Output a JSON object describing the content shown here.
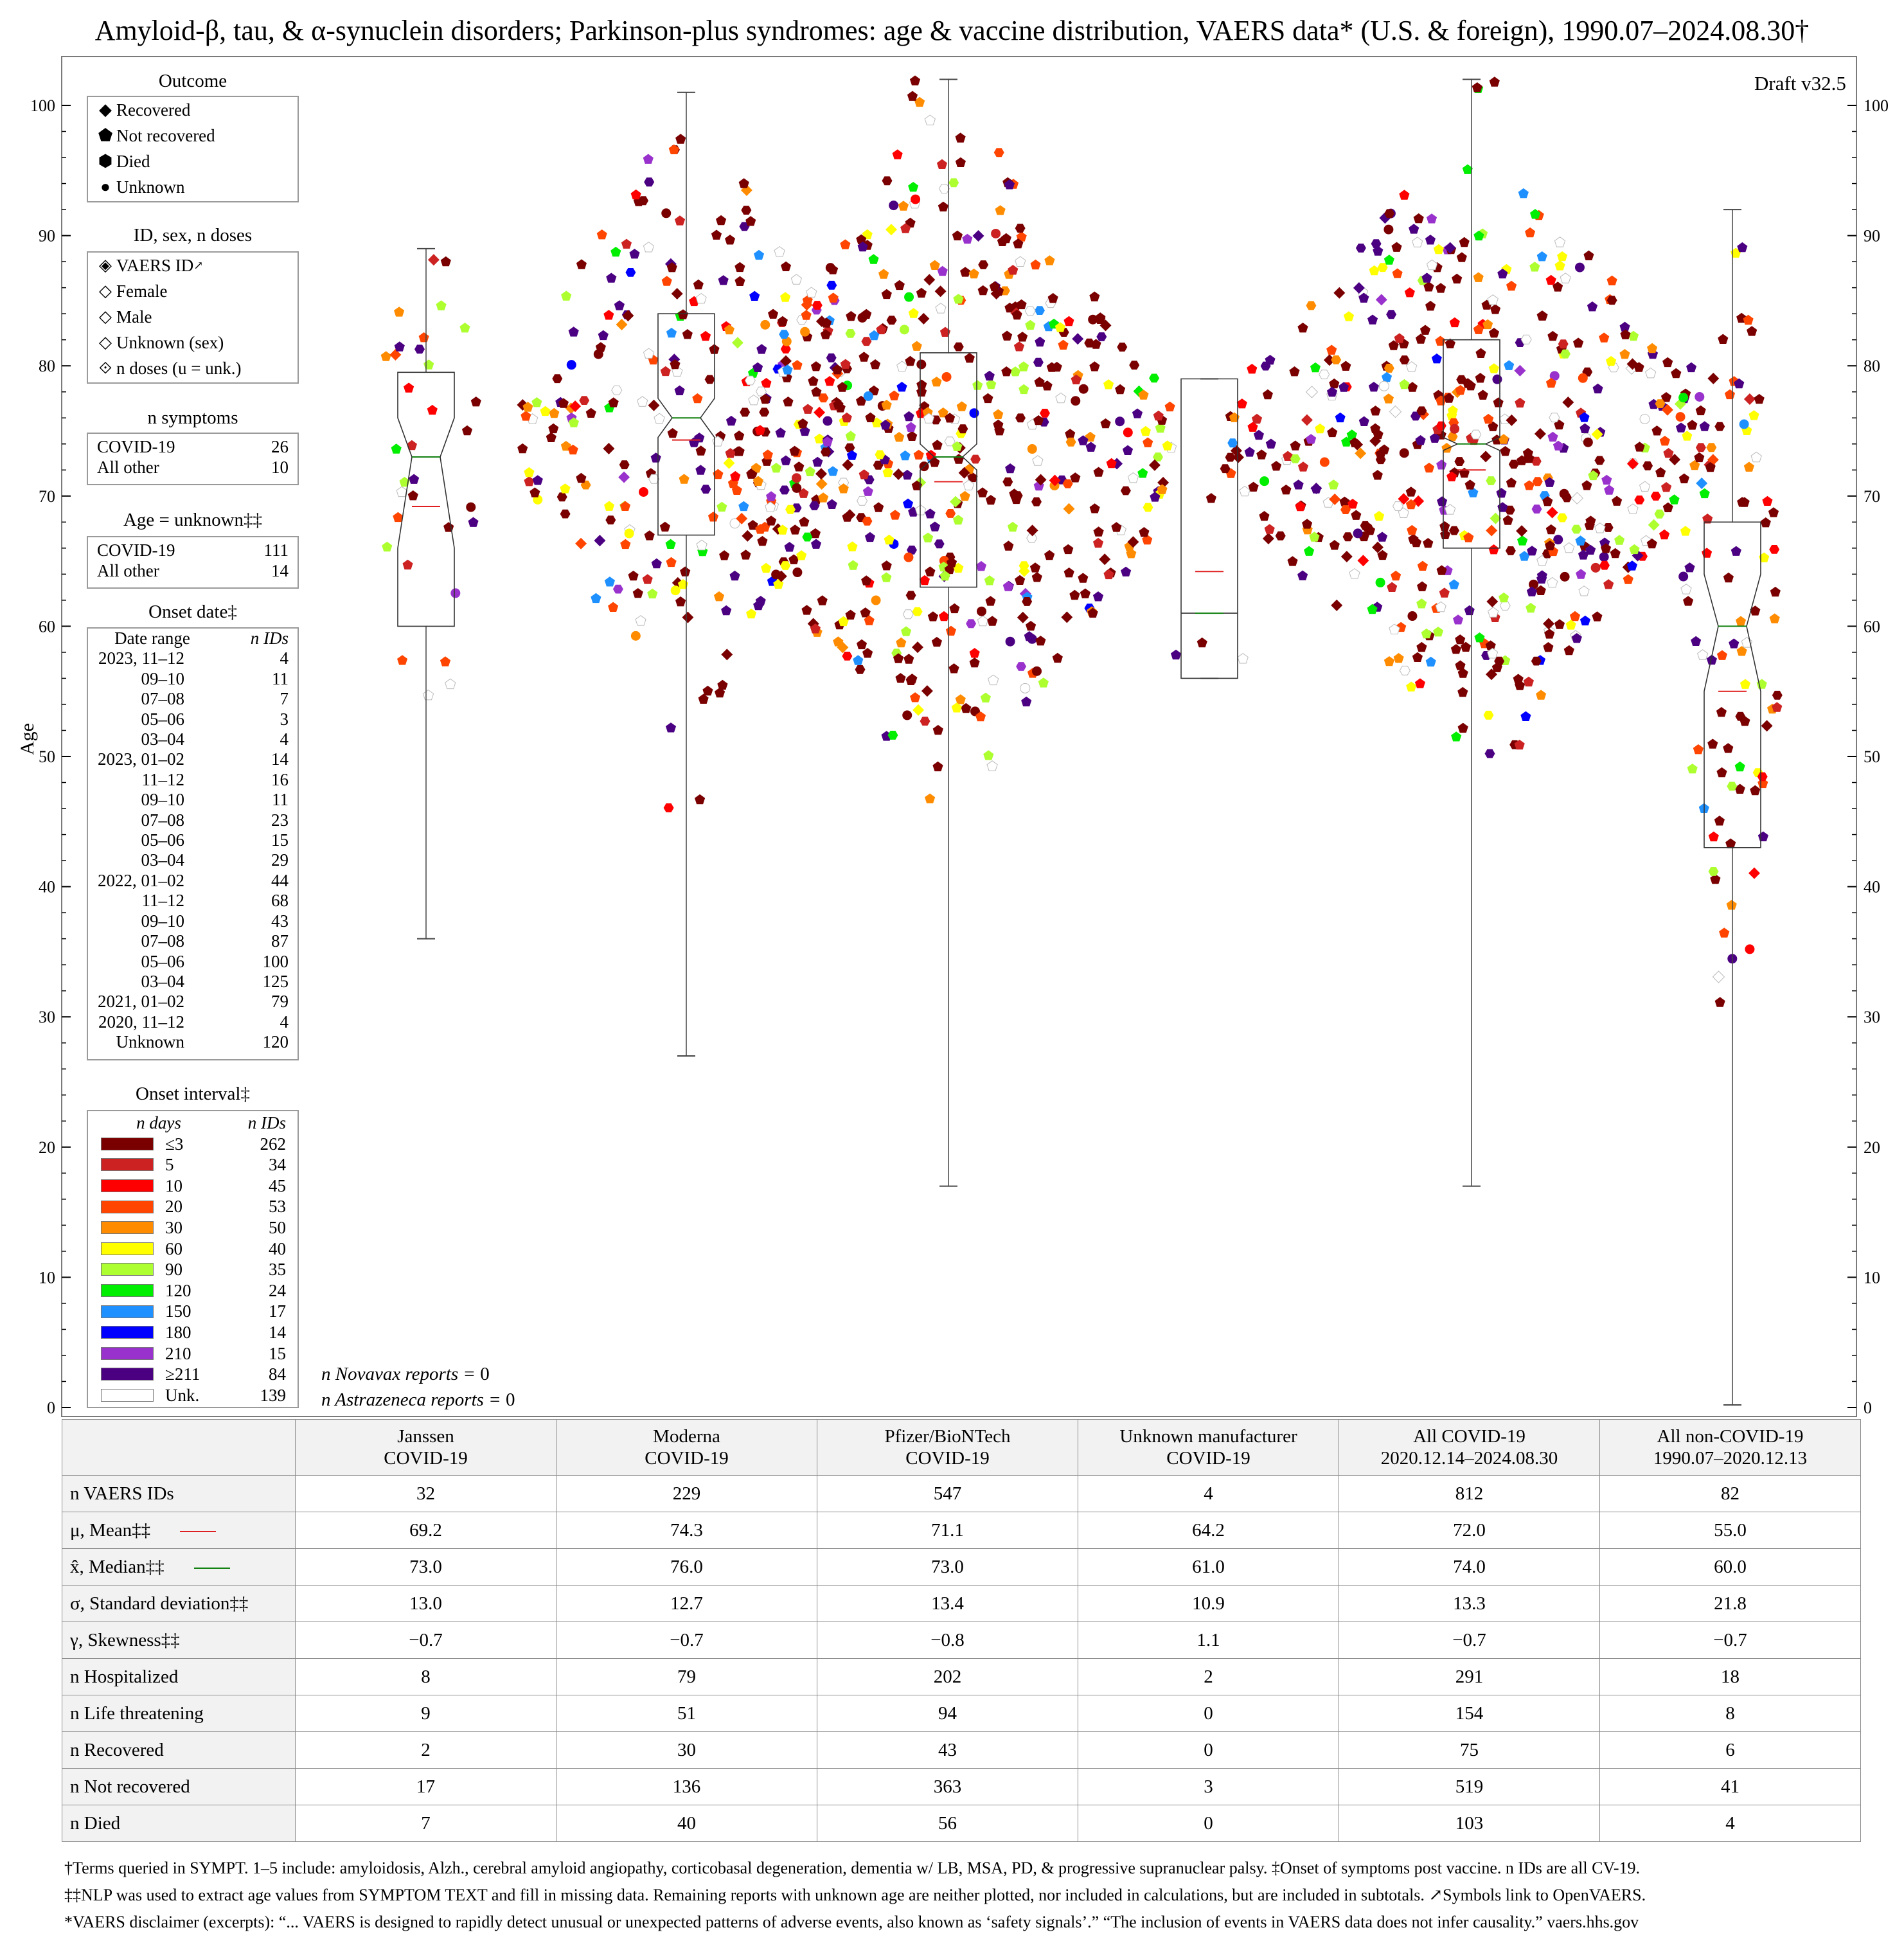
{
  "title": "Amyloid-β, tau, & α-synuclein disorders; Parkinson-plus syndromes: age & vaccine distribution, VAERS data* (U.S. & foreign), 1990.07–2024.08.30†",
  "draft": "Draft v32.5",
  "chart_data": {
    "type": "scatter",
    "subtype": "box plot with beeswarm points",
    "ylabel": "Age",
    "ylim": [
      0,
      103
    ],
    "yticks": [
      0,
      10,
      20,
      30,
      40,
      50,
      60,
      70,
      80,
      90,
      100
    ],
    "categories": [
      "Janssen COVID-19",
      "Moderna COVID-19",
      "Pfizer/BioNTech COVID-19",
      "Unknown manufacturer COVID-19",
      "All COVID-19",
      "All non-COVID-19"
    ],
    "boxes": [
      {
        "name": "Janssen",
        "min": 36,
        "q1": 60,
        "median": 73,
        "q3": 79.5,
        "max": 89,
        "mean": 69.2,
        "notch_low": 66,
        "notch_high": 76
      },
      {
        "name": "Moderna",
        "min": 27,
        "q1": 67,
        "median": 76,
        "q3": 84,
        "max": 101,
        "mean": 74.3,
        "notch_low": 74.5,
        "notch_high": 77.5
      },
      {
        "name": "Pfizer/BioNTech",
        "min": 17,
        "q1": 63,
        "median": 73,
        "q3": 81,
        "max": 102,
        "mean": 71.1,
        "notch_low": 72,
        "notch_high": 74
      },
      {
        "name": "Unknown manufacturer",
        "min": 56,
        "q1": 56,
        "median": 61,
        "q3": 79,
        "max": 79,
        "mean": 64.2,
        "notch_low": 61,
        "notch_high": 61
      },
      {
        "name": "All COVID-19",
        "min": 17,
        "q1": 66,
        "median": 74,
        "q3": 82,
        "max": 102,
        "mean": 72.0,
        "notch_low": 73.5,
        "notch_high": 74.5
      },
      {
        "name": "All non-COVID-19",
        "min": 0.2,
        "q1": 43,
        "median": 60,
        "q3": 68,
        "max": 92,
        "mean": 55.0,
        "notch_low": 55,
        "notch_high": 64
      }
    ],
    "legend_placement": "left"
  },
  "legends": {
    "outcome": {
      "title": "Outcome",
      "items": [
        {
          "label": "Recovered",
          "icon": "diamond"
        },
        {
          "label": "Not recovered",
          "icon": "pentagon"
        },
        {
          "label": "Died",
          "icon": "hexagon"
        },
        {
          "label": "Unknown",
          "icon": "circle"
        }
      ]
    },
    "id_sex": {
      "title": "ID, sex, n doses",
      "items": [
        {
          "label": "VAERS ID",
          "icon": "diamond-crossed"
        },
        {
          "label": "Female",
          "icon": "diamond-female"
        },
        {
          "label": "Male",
          "icon": "diamond-male"
        },
        {
          "label": "Unknown (sex)",
          "icon": "diamond-unknown"
        },
        {
          "label": "n doses (u = unk.)",
          "icon": "diamond-dot"
        }
      ]
    },
    "symptoms": {
      "title": "n symptoms",
      "rows": [
        {
          "label": "COVID-19",
          "n": "26"
        },
        {
          "label": "All other",
          "n": "10"
        }
      ]
    },
    "age_unknown": {
      "title": "Age = unknown‡‡",
      "rows": [
        {
          "label": "COVID-19",
          "n": "111"
        },
        {
          "label": "All other",
          "n": "14"
        }
      ]
    },
    "onset_date": {
      "title": "Onset date‡",
      "head_range": "Date range",
      "head_n": "n IDs",
      "rows": [
        {
          "a": "2023, 11–12",
          "n": "4"
        },
        {
          "a": "09–10",
          "n": "11"
        },
        {
          "a": "07–08",
          "n": "7"
        },
        {
          "a": "05–06",
          "n": "3"
        },
        {
          "a": "03–04",
          "n": "4"
        },
        {
          "a": "2023, 01–02",
          "n": "14"
        },
        {
          "a": "11–12",
          "n": "16"
        },
        {
          "a": "09–10",
          "n": "11"
        },
        {
          "a": "07–08",
          "n": "23"
        },
        {
          "a": "05–06",
          "n": "15"
        },
        {
          "a": "03–04",
          "n": "29"
        },
        {
          "a": "2022, 01–02",
          "n": "44"
        },
        {
          "a": "11–12",
          "n": "68"
        },
        {
          "a": "09–10",
          "n": "43"
        },
        {
          "a": "07–08",
          "n": "87"
        },
        {
          "a": "05–06",
          "n": "100"
        },
        {
          "a": "03–04",
          "n": "125"
        },
        {
          "a": "2021, 01–02",
          "n": "79"
        },
        {
          "a": "2020, 11–12",
          "n": "4"
        },
        {
          "a": "Unknown",
          "n": "120"
        }
      ]
    },
    "onset_interval": {
      "title": "Onset interval‡",
      "head_days": "n days",
      "head_n": "n IDs",
      "rows": [
        {
          "label": "≤3",
          "n": "262",
          "color": "#7a0000"
        },
        {
          "label": "5",
          "n": "34",
          "color": "#cc2222"
        },
        {
          "label": "10",
          "n": "45",
          "color": "#ff0000"
        },
        {
          "label": "20",
          "n": "53",
          "color": "#ff4500"
        },
        {
          "label": "30",
          "n": "50",
          "color": "#ff8c00"
        },
        {
          "label": "60",
          "n": "40",
          "color": "#ffff00"
        },
        {
          "label": "90",
          "n": "35",
          "color": "#adff2f"
        },
        {
          "label": "120",
          "n": "24",
          "color": "#00ee00"
        },
        {
          "label": "150",
          "n": "17",
          "color": "#1e90ff"
        },
        {
          "label": "180",
          "n": "14",
          "color": "#0000ff"
        },
        {
          "label": "210",
          "n": "15",
          "color": "#9932cc"
        },
        {
          "label": "≥211",
          "n": "84",
          "color": "#4b0082"
        },
        {
          "label": "Unk.",
          "n": "139",
          "color": "#ffffff"
        }
      ]
    }
  },
  "notes": {
    "novavax": "n Novavax reports = ",
    "novavax_n": "0",
    "astrazeneca": "n Astrazeneca reports = ",
    "astrazeneca_n": "0"
  },
  "table": {
    "columns": [
      [
        "Janssen",
        "COVID-19"
      ],
      [
        "Moderna",
        "COVID-19"
      ],
      [
        "Pfizer/BioNTech",
        "COVID-19"
      ],
      [
        "Unknown manufacturer",
        "COVID-19"
      ],
      [
        "All COVID-19",
        "2020.12.14–2024.08.30"
      ],
      [
        "All non-COVID-19",
        "1990.07–2020.12.13"
      ]
    ],
    "rows": [
      {
        "label": "n VAERS IDs",
        "values": [
          "32",
          "229",
          "547",
          "4",
          "812",
          "82"
        ]
      },
      {
        "label": "μ, Mean‡‡",
        "line": "#e02020",
        "values": [
          "69.2",
          "74.3",
          "71.1",
          "64.2",
          "72.0",
          "55.0"
        ]
      },
      {
        "label": "x̂, Median‡‡",
        "line": "#108010",
        "values": [
          "73.0",
          "76.0",
          "73.0",
          "61.0",
          "74.0",
          "60.0"
        ]
      },
      {
        "label": "σ, Standard deviation‡‡",
        "values": [
          "13.0",
          "12.7",
          "13.4",
          "10.9",
          "13.3",
          "21.8"
        ]
      },
      {
        "label": "γ, Skewness‡‡",
        "values": [
          "−0.7",
          "−0.7",
          "−0.8",
          "1.1",
          "−0.7",
          "−0.7"
        ]
      },
      {
        "label": "n Hospitalized",
        "values": [
          "8",
          "79",
          "202",
          "2",
          "291",
          "18"
        ]
      },
      {
        "label": "n Life threatening",
        "values": [
          "9",
          "51",
          "94",
          "0",
          "154",
          "8"
        ]
      },
      {
        "label": "n Recovered",
        "values": [
          "2",
          "30",
          "43",
          "0",
          "75",
          "6"
        ]
      },
      {
        "label": "n Not recovered",
        "values": [
          "17",
          "136",
          "363",
          "3",
          "519",
          "41"
        ]
      },
      {
        "label": "n Died",
        "values": [
          "7",
          "40",
          "56",
          "0",
          "103",
          "4"
        ]
      }
    ]
  },
  "footnotes": [
    "†Terms queried in SYMPT. 1–5 include: amyloidosis, Alzh., cerebral amyloid angiopathy, corticobasal degeneration, dementia w/ LB, MSA, PD, & progressive supranuclear palsy.   ‡Onset of symptoms post vaccine. n IDs are all CV-19.",
    "‡‡NLP was used to extract age values from SYMPTOM TEXT and fill in missing data. Remaining reports with unknown age are neither plotted, nor included in calculations, but are included in subtotals.    ↗Symbols link to OpenVAERS.",
    "*VAERS disclaimer (excerpts): “... VAERS is designed to rapidly detect unusual or unexpected patterns of adverse events, also known as ‘safety signals’.” “The inclusion of events in VAERS data does not infer causality.”   vaers.hhs.gov"
  ]
}
